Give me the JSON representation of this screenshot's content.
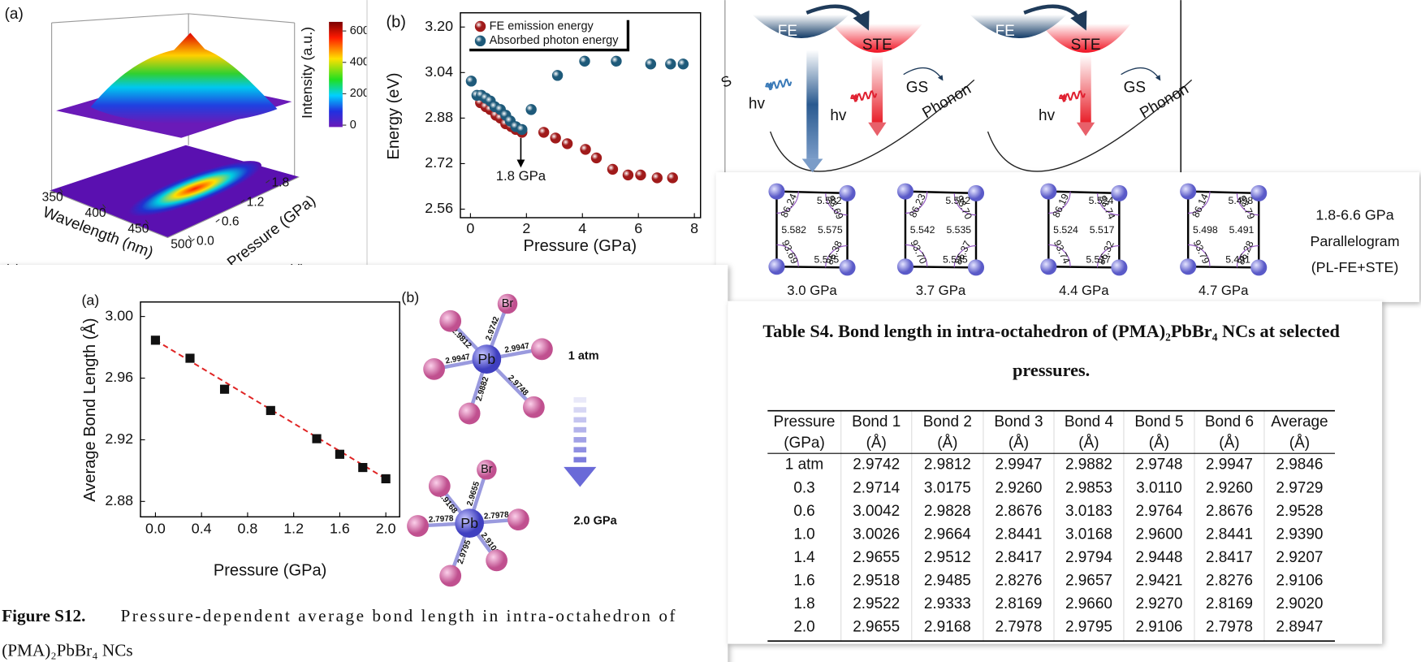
{
  "panel_a3d": {
    "label": "(a)",
    "side_labels": [
      "(c)",
      "(d)"
    ],
    "x_label": "Wavelength (nm)",
    "y_label": "Pressure (GPa)",
    "colorbar_label": "Intensity (a.u.)",
    "xlim": [
      340,
      510
    ],
    "xticks": [
      350,
      400,
      450,
      500
    ],
    "ylim": [
      -0.1,
      1.9
    ],
    "yticks": [
      {
        "value": 0,
        "label": "0.0"
      },
      0.6,
      1.2,
      1.8
    ],
    "colorbar_lim": [
      -12,
      658
    ],
    "colorbar_ticks": [
      0,
      200,
      400,
      600
    ]
  },
  "energy_chart": {
    "type": "scatter",
    "label": "(b)",
    "x_label": "Pressure (GPa)",
    "y_label": "Energy (eV)",
    "xlim": [
      -0.36,
      8.22
    ],
    "xticks": [
      0,
      2,
      4,
      6,
      8
    ],
    "ylim": [
      2.53,
      3.25
    ],
    "yticks": [
      2.56,
      2.72,
      2.88,
      3.04,
      {
        "value": 3.2,
        "label": "3.20"
      }
    ],
    "series": [
      {
        "name": "FE emission energy",
        "color": "#a01a1a",
        "x": [
          0.36,
          0.55,
          0.71,
          0.91,
          1.07,
          1.26,
          1.46,
          1.62,
          1.84,
          2.62,
          3.04,
          3.46,
          4.11,
          4.5,
          5.08,
          5.63,
          6.08,
          6.67,
          7.22
        ],
        "values": [
          2.934,
          2.92,
          2.91,
          2.89,
          2.88,
          2.86,
          2.85,
          2.84,
          2.83,
          2.83,
          2.81,
          2.79,
          2.77,
          2.74,
          2.7,
          2.68,
          2.68,
          2.67,
          2.67
        ]
      },
      {
        "name": "Absorbed photon energy",
        "color": "#1e5a7a",
        "x": [
          0.03,
          0.23,
          0.39,
          0.55,
          0.71,
          0.87,
          1.07,
          1.26,
          1.42,
          1.62,
          1.84,
          2.17,
          3.11,
          4.08,
          5.21,
          6.44,
          7.15,
          7.6
        ],
        "values": [
          3.01,
          2.96,
          2.96,
          2.95,
          2.94,
          2.92,
          2.91,
          2.89,
          2.87,
          2.85,
          2.84,
          2.91,
          3.03,
          3.08,
          3.08,
          3.07,
          3.07,
          3.07
        ]
      }
    ],
    "annotation": {
      "text": "1.8 GPa",
      "x": 1.8
    }
  },
  "diagram": {
    "clipped_label": "S",
    "panels": [
      {
        "fe": "FE",
        "ste": "STE",
        "hv": [
          "hv",
          "hv"
        ],
        "gs": "GS",
        "phonon": "Phonon"
      },
      {
        "fe": "FE",
        "ste": "STE",
        "hv": [
          "hv"
        ],
        "gs": "GS",
        "phonon": "Phonon"
      }
    ]
  },
  "parallelograms": {
    "items": [
      {
        "pressure": "3.0 GPa",
        "angles": [
          "86.24",
          "93.69",
          "93.69",
          "86.38"
        ],
        "lengths": [
          "5.582",
          "5.582",
          "5.575",
          "5.575"
        ]
      },
      {
        "pressure": "3.7 GPa",
        "angles": [
          "86.23",
          "93.70",
          "93.70",
          "86.37"
        ],
        "lengths": [
          "5.542",
          "5.542",
          "5.535",
          "5.535"
        ]
      },
      {
        "pressure": "4.4 GPa",
        "angles": [
          "86.19",
          "93.74",
          "93.74",
          "86.32"
        ],
        "lengths": [
          "5.524",
          "5.524",
          "5.517",
          "5.517"
        ]
      },
      {
        "pressure": "4.7 GPa",
        "angles": [
          "86.14",
          "93.79",
          "93.79",
          "86.28"
        ],
        "lengths": [
          "5.498",
          "5.498",
          "5.491",
          "5.491"
        ]
      }
    ],
    "note": [
      "1.8-6.6 GPa",
      "Parallelogram",
      "(PL-FE+STE)"
    ]
  },
  "bond_chart": {
    "type": "line",
    "label": "(a)",
    "x_label": "Pressure (GPa)",
    "y_label": "Average Bond Length (Å)",
    "color": "#111111",
    "fit_color": "#e02424",
    "x": [
      0,
      0.3,
      0.6,
      1.0,
      1.4,
      1.6,
      1.8,
      2.0
    ],
    "values": [
      2.9846,
      2.9729,
      2.9528,
      2.939,
      2.9207,
      2.9106,
      2.902,
      2.8947
    ],
    "xlim": [
      -0.13,
      2.12
    ],
    "xticks": [
      {
        "value": 0,
        "label": "0.0"
      },
      0.4,
      0.8,
      1.2,
      1.6,
      {
        "value": 2,
        "label": "2.0"
      }
    ],
    "ylim": [
      2.87,
      3.0094
    ],
    "yticks": [
      2.88,
      2.92,
      2.96,
      {
        "value": 3,
        "label": "3.00"
      }
    ]
  },
  "octahedra": {
    "label": "(b)",
    "structures": [
      {
        "pressure": "1 atm",
        "center": "Pb",
        "top": "Br",
        "bonds": [
          "2.9742",
          "2.9812",
          "2.9947",
          "2.9947",
          "2.9748",
          "2.9882"
        ]
      },
      {
        "pressure": "2.0 GPa",
        "center": "Pb",
        "top": "Br",
        "bonds": [
          "2.9655",
          "2.9168",
          "2.7978",
          "2.7978",
          "2.9106",
          "2.9795"
        ]
      }
    ]
  },
  "caption": {
    "label": "Figure S12.",
    "lines": [
      "Pressure-dependent average bond length in intra-octahedron of",
      "(PMA)₂PbBr₄ NCs"
    ]
  },
  "table": {
    "title_lines": [
      "Table S4. Bond length in intra-octahedron of (PMA)₂PbBr₄ NCs at selected",
      "pressures."
    ],
    "header": [
      [
        "Pressure",
        "(GPa)"
      ],
      [
        "Bond 1",
        "(Å)"
      ],
      [
        "Bond 2",
        "(Å)"
      ],
      [
        "Bond 3",
        "(Å)"
      ],
      [
        "Bond 4",
        "(Å)"
      ],
      [
        "Bond 5",
        "(Å)"
      ],
      [
        "Bond 6",
        "(Å)"
      ],
      [
        "Average",
        "(Å)"
      ]
    ],
    "rows": [
      [
        "1 atm",
        "2.9742",
        "2.9812",
        "2.9947",
        "2.9882",
        "2.9748",
        "2.9947",
        "2.9846"
      ],
      [
        "0.3",
        "2.9714",
        "3.0175",
        "2.9260",
        "2.9853",
        "3.0110",
        "2.9260",
        "2.9729"
      ],
      [
        "0.6",
        "3.0042",
        "2.9828",
        "2.8676",
        "3.0183",
        "2.9764",
        "2.8676",
        "2.9528"
      ],
      [
        "1.0",
        "3.0026",
        "2.9664",
        "2.8441",
        "3.0168",
        "2.9600",
        "2.8441",
        "2.9390"
      ],
      [
        "1.4",
        "2.9655",
        "2.9512",
        "2.8417",
        "2.9794",
        "2.9448",
        "2.8417",
        "2.9207"
      ],
      [
        "1.6",
        "2.9518",
        "2.9485",
        "2.8276",
        "2.9657",
        "2.9421",
        "2.8276",
        "2.9106"
      ],
      [
        "1.8",
        "2.9522",
        "2.9333",
        "2.8169",
        "2.9660",
        "2.9270",
        "2.8169",
        "2.9020"
      ],
      [
        "2.0",
        "2.9655",
        "2.9168",
        "2.7978",
        "2.9795",
        "2.9106",
        "2.7978",
        "2.8947"
      ]
    ]
  }
}
